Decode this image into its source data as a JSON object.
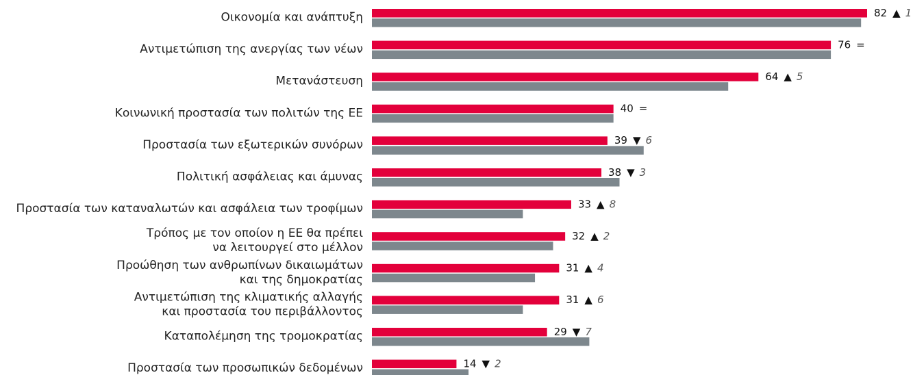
{
  "chart_data": {
    "type": "bar",
    "orientation": "horizontal",
    "categories": [
      "Οικονομία και ανάπτυξη",
      "Αντιμετώπιση της ανεργίας των νέων",
      "Μετανάστευση",
      "Κοινωνική προστασία των πολιτών της ΕΕ",
      "Προστασία των εξωτερικών συνόρων",
      "Πολιτική ασφάλειας και άμυνας",
      "Προστασία των καταναλωτών και ασφάλεια των τροφίμων",
      "Τρόπος με τον οποίον η ΕΕ θα πρέπει\nνα λειτουργεί στο μέλλον",
      "Προώθηση των ανθρωπίνων δικαιωμάτων\nκαι της δημοκρατίας",
      "Αντιμετώπιση της κλιματικής αλλαγής\nκαι προστασία του περιβάλλοντος",
      "Καταπολέμηση της τρομοκρατίας",
      "Προστασία των προσωπικών δεδομένων"
    ],
    "series": [
      {
        "color": "#e3003b",
        "values": [
          82,
          76,
          64,
          40,
          39,
          38,
          33,
          32,
          31,
          31,
          29,
          14
        ]
      },
      {
        "color": "#7d878d",
        "values": [
          81,
          76,
          59,
          40,
          45,
          41,
          25,
          30,
          27,
          25,
          36,
          16
        ]
      }
    ],
    "change_symbols": [
      "▲",
      "=",
      "▲",
      "=",
      "▼",
      "▼",
      "▲",
      "▲",
      "▲",
      "▲",
      "▼",
      "▼"
    ],
    "change_values": [
      1,
      null,
      5,
      null,
      6,
      3,
      8,
      2,
      4,
      6,
      7,
      2
    ]
  }
}
